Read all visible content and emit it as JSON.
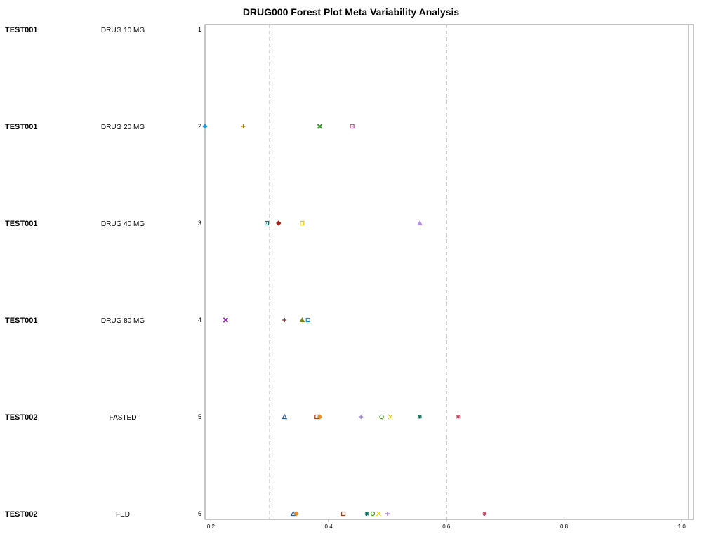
{
  "chart_data": {
    "type": "scatter",
    "title": "DRUG000 Forest Plot Meta Variability Analysis",
    "xlabel": "",
    "ylabel": "",
    "xlim": [
      0.19,
      1.02
    ],
    "x_ticks": [
      0.2,
      0.4,
      0.6,
      0.8,
      1.0
    ],
    "x_tick_labels": [
      "0.2",
      "0.4",
      "0.6",
      "0.8",
      "1.0"
    ],
    "reference_lines": [
      0.3,
      0.6
    ],
    "rows": [
      {
        "row": 1,
        "row_label": "1",
        "study": "TEST001",
        "treatment": "DRUG 10 MG",
        "points": []
      },
      {
        "row": 2,
        "row_label": "2",
        "study": "TEST001",
        "treatment": "DRUG 20 MG",
        "points": [
          {
            "x": 0.19,
            "marker": "diamond-filled",
            "color": "#1e9bd1"
          },
          {
            "x": 0.255,
            "marker": "plus",
            "color": "#b08000"
          },
          {
            "x": 0.385,
            "marker": "x-bold",
            "color": "#3c9a2c"
          },
          {
            "x": 0.44,
            "marker": "square-dot",
            "color": "#c0508a"
          }
        ]
      },
      {
        "row": 3,
        "row_label": "3",
        "study": "TEST001",
        "treatment": "DRUG 40 MG",
        "points": [
          {
            "x": 0.295,
            "marker": "square-dot",
            "color": "#1a6a6a"
          },
          {
            "x": 0.315,
            "marker": "diamond-filled",
            "color": "#a0201a"
          },
          {
            "x": 0.355,
            "marker": "square",
            "color": "#e8c000"
          },
          {
            "x": 0.555,
            "marker": "triangle-filled",
            "color": "#b58ee8"
          }
        ]
      },
      {
        "row": 4,
        "row_label": "4",
        "study": "TEST001",
        "treatment": "DRUG 80 MG",
        "points": [
          {
            "x": 0.225,
            "marker": "x-bold",
            "color": "#8a2aa0"
          },
          {
            "x": 0.325,
            "marker": "plus",
            "color": "#8a1a1a"
          },
          {
            "x": 0.355,
            "marker": "triangle-filled",
            "color": "#7a8a1a"
          },
          {
            "x": 0.365,
            "marker": "square",
            "color": "#1e8fd1"
          }
        ]
      },
      {
        "row": 5,
        "row_label": "5",
        "study": "TEST002",
        "treatment": "FASTED",
        "points": [
          {
            "x": 0.325,
            "marker": "triangle",
            "color": "#2a5aa0"
          },
          {
            "x": 0.38,
            "marker": "square",
            "color": "#a0401a"
          },
          {
            "x": 0.385,
            "marker": "diamond-filled",
            "color": "#e8902a"
          },
          {
            "x": 0.455,
            "marker": "plus",
            "color": "#9a6ee8"
          },
          {
            "x": 0.49,
            "marker": "circle",
            "color": "#4a9a1a"
          },
          {
            "x": 0.505,
            "marker": "x",
            "color": "#e8d000"
          },
          {
            "x": 0.555,
            "marker": "asterisk",
            "color": "#0a6a5a"
          },
          {
            "x": 0.62,
            "marker": "asterisk",
            "color": "#c04060"
          }
        ]
      },
      {
        "row": 6,
        "row_label": "6",
        "study": "TEST002",
        "treatment": "FED",
        "points": [
          {
            "x": 0.34,
            "marker": "triangle",
            "color": "#2a5aa0"
          },
          {
            "x": 0.345,
            "marker": "diamond-filled",
            "color": "#e8902a"
          },
          {
            "x": 0.425,
            "marker": "square",
            "color": "#a0401a"
          },
          {
            "x": 0.465,
            "marker": "asterisk",
            "color": "#0a6a5a"
          },
          {
            "x": 0.475,
            "marker": "circle",
            "color": "#4a9a1a"
          },
          {
            "x": 0.485,
            "marker": "x",
            "color": "#e8d000"
          },
          {
            "x": 0.5,
            "marker": "plus",
            "color": "#9a6ee8"
          },
          {
            "x": 0.665,
            "marker": "asterisk",
            "color": "#c04060"
          }
        ]
      }
    ]
  }
}
